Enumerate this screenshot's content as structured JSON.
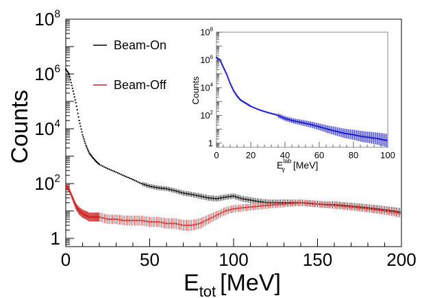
{
  "chart_data": [
    {
      "type": "scatter",
      "title": "",
      "xlabel": "E",
      "xlabel_sub": "tot",
      "xlabel_unit": "[MeV]",
      "ylabel": "Counts",
      "xlim": [
        0,
        200
      ],
      "ylim": [
        0.5,
        100000000
      ],
      "yscale": "log",
      "xticks": [
        "0",
        "50",
        "100",
        "150",
        "200"
      ],
      "yticks": [
        {
          "base": "1",
          "exp": ""
        },
        {
          "base": "10",
          "exp": "2"
        },
        {
          "base": "10",
          "exp": "4"
        },
        {
          "base": "10",
          "exp": "6"
        },
        {
          "base": "10",
          "exp": "8"
        }
      ],
      "legend_position": "top-left",
      "series": [
        {
          "name": "Beam-On",
          "color": "#000000",
          "x": [
            0,
            2,
            4,
            6,
            8,
            10,
            12,
            14,
            16,
            18,
            20,
            25,
            30,
            35,
            40,
            45,
            50,
            55,
            60,
            65,
            70,
            75,
            80,
            85,
            90,
            95,
            100,
            105,
            110,
            115,
            120,
            125,
            130,
            135,
            140,
            145,
            150,
            155,
            160,
            165,
            170,
            175,
            180,
            185,
            190,
            195,
            200
          ],
          "y": [
            1500000,
            1000000,
            300000,
            90000,
            20000,
            6000,
            2500,
            1300,
            900,
            650,
            500,
            350,
            260,
            190,
            140,
            100,
            80,
            70,
            65,
            55,
            45,
            40,
            35,
            30,
            28,
            32,
            35,
            28,
            25,
            22,
            20,
            20,
            20,
            20,
            20,
            19,
            18,
            17,
            17,
            16,
            15,
            14,
            13,
            12,
            11,
            10,
            9
          ]
        },
        {
          "name": "Beam-Off",
          "color": "#cc2222",
          "x": [
            0,
            2,
            4,
            6,
            8,
            10,
            12,
            14,
            16,
            18,
            20,
            25,
            30,
            35,
            40,
            45,
            50,
            55,
            60,
            65,
            70,
            75,
            80,
            85,
            90,
            95,
            100,
            105,
            110,
            115,
            120,
            125,
            130,
            135,
            140,
            145,
            150,
            155,
            160,
            165,
            170,
            175,
            180,
            185,
            190,
            195,
            200
          ],
          "y": [
            80,
            60,
            30,
            15,
            10,
            8,
            7,
            6,
            6,
            6,
            6,
            5,
            5,
            4.5,
            4.5,
            4.5,
            4,
            4,
            3.5,
            3.5,
            3,
            3,
            3.5,
            5,
            7,
            10,
            12,
            13,
            14,
            15,
            16,
            17,
            18,
            19,
            20,
            19,
            18,
            17,
            16,
            15,
            14,
            13,
            12,
            11,
            10,
            9,
            8
          ]
        }
      ]
    },
    {
      "type": "scatter",
      "title": "",
      "xlabel": "E",
      "xlabel_sub": "γ",
      "xlabel_sup": "lab",
      "xlabel_unit": "[MeV]",
      "ylabel": "Counts",
      "xlim": [
        0,
        100
      ],
      "ylim": [
        0.5,
        100000000
      ],
      "yscale": "log",
      "xticks": [
        "0",
        "20",
        "40",
        "60",
        "80",
        "100"
      ],
      "yticks": [
        {
          "base": "1",
          "exp": ""
        },
        {
          "base": "10",
          "exp": "2"
        },
        {
          "base": "10",
          "exp": "4"
        },
        {
          "base": "10",
          "exp": "6"
        },
        {
          "base": "10",
          "exp": "8"
        }
      ],
      "series": [
        {
          "color": "#2222cc",
          "x": [
            0,
            2,
            4,
            6,
            8,
            10,
            12,
            14,
            16,
            18,
            20,
            25,
            30,
            35,
            40,
            45,
            50,
            55,
            60,
            65,
            70,
            75,
            80,
            85,
            90,
            95,
            100
          ],
          "y": [
            1500000,
            1000000,
            300000,
            90000,
            20000,
            6000,
            2500,
            1300,
            900,
            650,
            450,
            250,
            160,
            110,
            60,
            40,
            30,
            22,
            15,
            10,
            7,
            5,
            4,
            3,
            2.5,
            2,
            1.5
          ]
        }
      ]
    }
  ]
}
